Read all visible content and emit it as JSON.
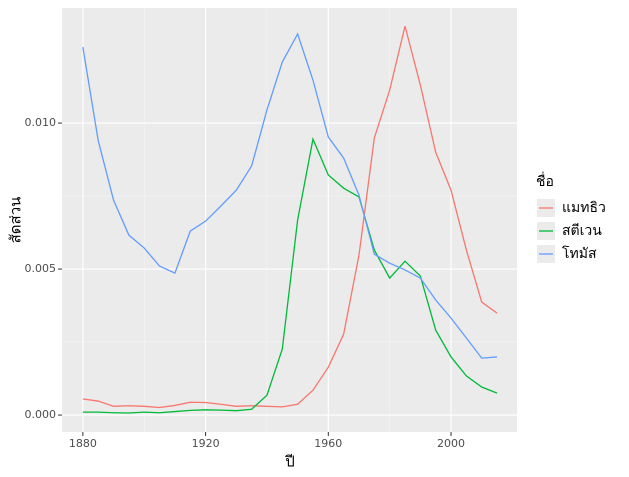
{
  "chart_data": {
    "type": "line",
    "x_label": "ปี",
    "y_label": "สัดส่วน",
    "legend_title": "ชื่อ",
    "x": [
      1880,
      1885,
      1890,
      1895,
      1900,
      1905,
      1910,
      1915,
      1920,
      1925,
      1930,
      1935,
      1940,
      1945,
      1950,
      1955,
      1960,
      1965,
      1970,
      1975,
      1980,
      1985,
      1990,
      1995,
      2000,
      2005,
      2010,
      2015
    ],
    "series": [
      {
        "name": "แมทธิว",
        "color": "#F8766D",
        "values": [
          0.00055,
          0.00048,
          0.0003,
          0.00032,
          0.0003,
          0.00026,
          0.00033,
          0.00044,
          0.00043,
          0.00037,
          0.0003,
          0.00032,
          0.0003,
          0.00028,
          0.00037,
          0.00085,
          0.00164,
          0.00277,
          0.00548,
          0.00949,
          0.01113,
          0.01332,
          0.0113,
          0.009,
          0.0077,
          0.00565,
          0.00387,
          0.00349
        ]
      },
      {
        "name": "สตีเวน",
        "color": "#00BA38",
        "values": [
          0.0001,
          0.0001,
          8e-05,
          7e-05,
          0.0001,
          8e-05,
          0.00012,
          0.00016,
          0.00018,
          0.00017,
          0.00015,
          0.0002,
          0.00068,
          0.00226,
          0.00668,
          0.00945,
          0.00822,
          0.00777,
          0.00747,
          0.00565,
          0.00469,
          0.00527,
          0.00476,
          0.00291,
          0.00199,
          0.00134,
          0.00096,
          0.00075
        ]
      },
      {
        "name": "โทมัส",
        "color": "#619CFF",
        "values": [
          0.0126,
          0.0094,
          0.00736,
          0.00616,
          0.00572,
          0.0051,
          0.00486,
          0.0063,
          0.00664,
          0.00716,
          0.0077,
          0.00853,
          0.01045,
          0.01209,
          0.01305,
          0.01147,
          0.00952,
          0.0088,
          0.00753,
          0.00551,
          0.0052,
          0.00497,
          0.00469,
          0.00394,
          0.00332,
          0.00264,
          0.00195,
          0.00199
        ]
      }
    ],
    "xlim": [
      1873.2,
      2021.5
    ],
    "xticks": [
      1880,
      1920,
      1960,
      2000
    ],
    "ylim": [
      -0.00058,
      0.01394
    ],
    "yticks": [
      {
        "value": 0,
        "label": "0.000"
      },
      0.005,
      {
        "value": 0.01,
        "label": "0.010"
      }
    ],
    "grid": true
  }
}
